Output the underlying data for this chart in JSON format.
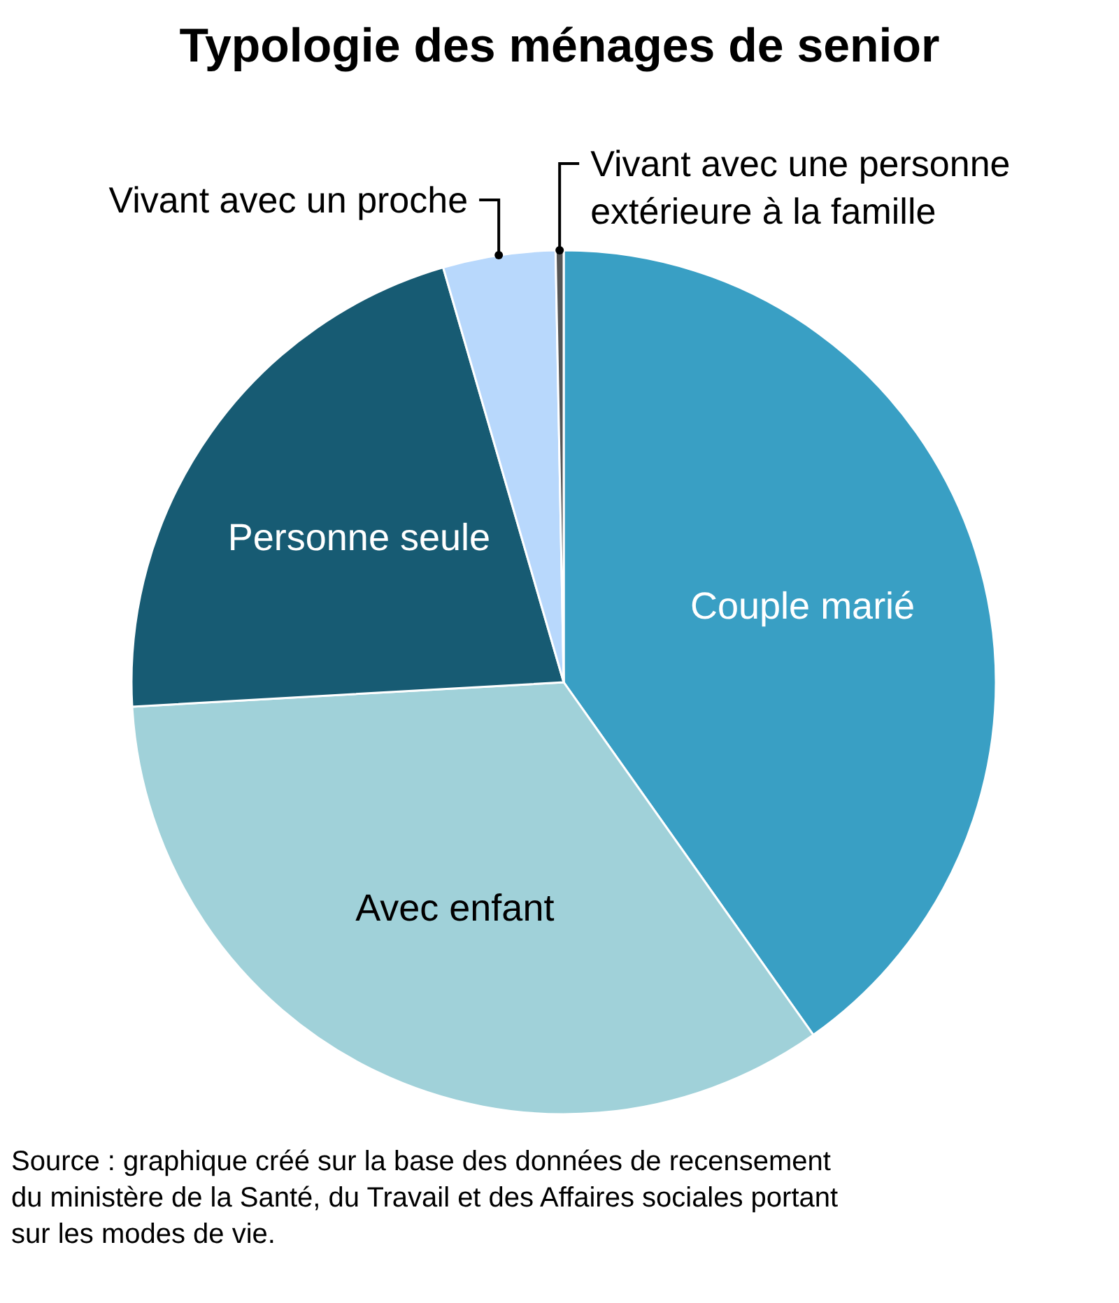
{
  "chart_data": {
    "type": "pie",
    "title": "Typologie des ménages de senior",
    "categories": [
      "Couple marié",
      "Avec enfant",
      "Personne seule",
      "Vivant avec un proche",
      "Vivant avec une personne extérieure à la famille"
    ],
    "values": [
      40.2,
      33.9,
      21.4,
      4.2,
      0.3
    ],
    "colors": [
      "#399fc4",
      "#a0d1d9",
      "#175b73",
      "#b8d8fc",
      "#555555"
    ],
    "annotations": [
      "Source : graphique créé sur la base des données de recensement du ministère de la Santé, du Travail et des Affaires sociales portant sur les modes de vie."
    ]
  }
}
